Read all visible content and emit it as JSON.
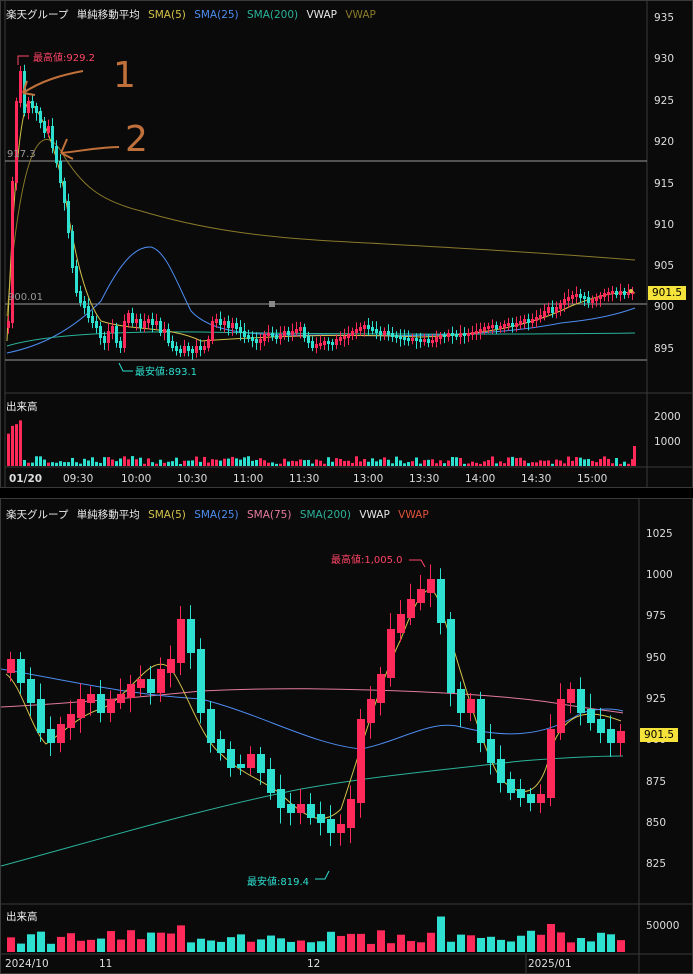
{
  "intraday": {
    "legend": {
      "name": "楽天グループ",
      "ma_type": "単純移動平均",
      "items": [
        {
          "label": "SMA(5)",
          "color": "#d4c24a"
        },
        {
          "label": "SMA(25)",
          "color": "#4d8cf0"
        },
        {
          "label": "SMA(200)",
          "color": "#2bb39a"
        },
        {
          "label": "VWAP",
          "color": "#e6e6e6"
        },
        {
          "label": "VWAP",
          "color": "#8a7a2a"
        }
      ]
    },
    "y_ticks": [
      "935",
      "930",
      "925",
      "920",
      "915",
      "910",
      "905",
      "900",
      "895"
    ],
    "current_price": "901.5",
    "high_label": "最高値:929.2",
    "low_label": "最安値:893.1",
    "hline_upper_label": "917.3",
    "hline_lower_label": "900.01",
    "volume_label": "出来高",
    "volume_ticks": [
      "2000",
      "1000"
    ],
    "x_ticks": [
      "01/20",
      "09:30",
      "10:00",
      "10:30",
      "11:00",
      "11:30",
      "13:00",
      "13:30",
      "14:00",
      "14:30",
      "15:00"
    ],
    "annotations": [
      "1",
      "2"
    ]
  },
  "daily": {
    "legend": {
      "name": "楽天グループ",
      "ma_type": "単純移動平均",
      "items": [
        {
          "label": "SMA(5)",
          "color": "#d4c24a"
        },
        {
          "label": "SMA(25)",
          "color": "#4d8cf0"
        },
        {
          "label": "SMA(75)",
          "color": "#e57aa0"
        },
        {
          "label": "SMA(200)",
          "color": "#2bb39a"
        },
        {
          "label": "VWAP",
          "color": "#e6e6e6"
        },
        {
          "label": "VWAP",
          "color": "#e0523a"
        }
      ]
    },
    "y_ticks": [
      "1025",
      "1000",
      "975",
      "950",
      "925",
      "900",
      "875",
      "850",
      "825"
    ],
    "current_price": "901.5",
    "high_label": "最高値:1,005.0",
    "low_label": "最安値:819.4",
    "volume_label": "出来高",
    "volume_ticks": [
      "50000"
    ],
    "x_ticks": [
      "2024/10",
      "11",
      "12",
      "2025/01"
    ]
  },
  "colors": {
    "up": "#ff2a5a",
    "down": "#2de0d0",
    "high": "#ff4466",
    "low": "#2de0d0"
  }
}
